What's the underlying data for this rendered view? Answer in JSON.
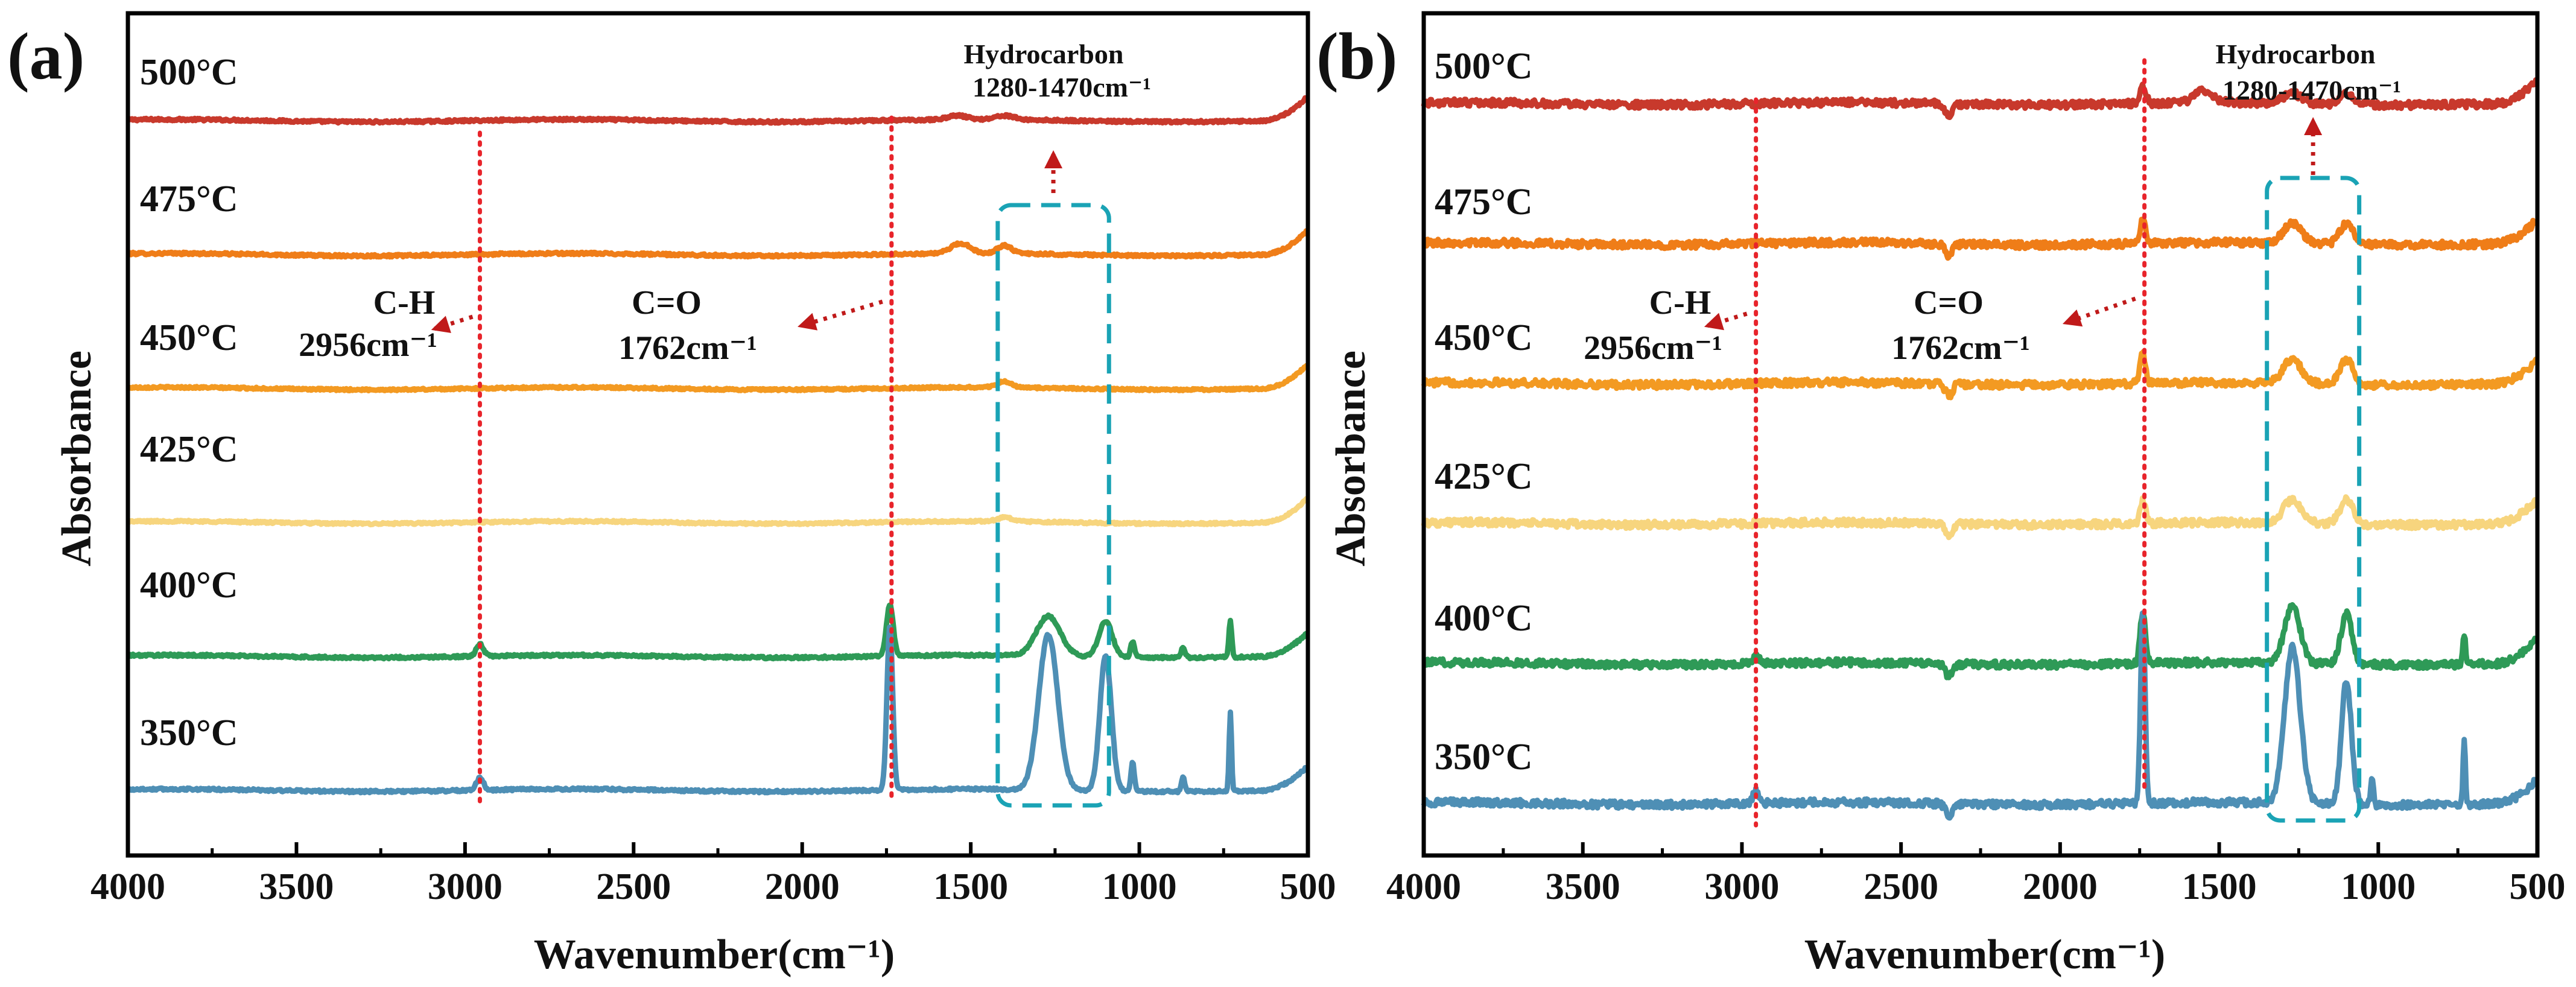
{
  "chart_data": [
    {
      "type": "line",
      "panel_label": "(a)",
      "xlabel": "Wavenumber(cm⁻¹)",
      "ylabel": "Absorbance",
      "xlim": [
        4000,
        500
      ],
      "x_reversed": true,
      "xticks": [
        4000,
        3500,
        3000,
        2500,
        2000,
        1500,
        1000,
        500
      ],
      "series": [
        {
          "name": "500°C",
          "label": "500°C",
          "color": "#c8392c",
          "offset": 5,
          "peaks": [
            [
              1540,
              0.02,
              40
            ],
            [
              1400,
              0.02,
              40
            ]
          ],
          "noise": 0.006
        },
        {
          "name": "475°C",
          "label": "475°C",
          "color": "#ef7d18",
          "offset": 4,
          "peaks": [
            [
              1530,
              0.05,
              40
            ],
            [
              1400,
              0.04,
              30
            ]
          ],
          "noise": 0.006
        },
        {
          "name": "450°C",
          "label": "450°C",
          "color": "#f39a22",
          "offset": 3,
          "peaks": [
            [
              1400,
              0.03,
              30
            ]
          ],
          "noise": 0.005
        },
        {
          "name": "425°C",
          "label": "425°C",
          "color": "#f7d57e",
          "offset": 2,
          "peaks": [
            [
              1400,
              0.02,
              30
            ]
          ],
          "noise": 0.005
        },
        {
          "name": "400°C",
          "label": "400°C",
          "color": "#2e9a57",
          "offset": 1,
          "peaks": [
            [
              2956,
              0.06,
              15
            ],
            [
              1740,
              0.26,
              14
            ],
            [
              1270,
              0.2,
              50
            ],
            [
              1100,
              0.18,
              28
            ],
            [
              1020,
              0.08,
              8
            ],
            [
              870,
              0.05,
              8
            ],
            [
              730,
              0.18,
              6
            ]
          ],
          "noise": 0.006
        },
        {
          "name": "350°C",
          "label": "350°C",
          "color": "#4e8fb5",
          "offset": 0,
          "peaks": [
            [
              2956,
              0.06,
              15
            ],
            [
              1740,
              0.82,
              12
            ],
            [
              1270,
              0.78,
              40
            ],
            [
              1100,
              0.68,
              24
            ],
            [
              1020,
              0.15,
              7
            ],
            [
              870,
              0.07,
              7
            ],
            [
              730,
              0.4,
              5
            ]
          ],
          "noise": 0.006
        }
      ],
      "annotations": {
        "ch_line": 2956,
        "co_line": 1735,
        "ch_label": "C-H",
        "ch_value": "2956cm⁻¹",
        "co_label": "C=O",
        "co_value": "1762cm⁻¹",
        "hc_label": "Hydrocarbon",
        "hc_value": "1280-1470cm⁻¹",
        "hc_box": [
          1420,
          1090
        ]
      }
    },
    {
      "type": "line",
      "panel_label": "(b)",
      "xlabel": "Wavenumber(cm⁻¹)",
      "ylabel": "Absorbance",
      "xlim": [
        4000,
        500
      ],
      "x_reversed": true,
      "xticks": [
        4000,
        3500,
        3000,
        2500,
        2000,
        1500,
        1000,
        500
      ],
      "series": [
        {
          "name": "500°C",
          "label": "500°C",
          "color": "#c8392c",
          "offset": 5,
          "peaks": [
            [
              2350,
              -0.06,
              15
            ],
            [
              1740,
              0.08,
              14
            ],
            [
              1550,
              0.06,
              40
            ],
            [
              1270,
              0.05,
              40
            ],
            [
              1100,
              0.05,
              30
            ]
          ],
          "noise": 0.018
        },
        {
          "name": "475°C",
          "label": "475°C",
          "color": "#ef7d18",
          "offset": 4,
          "peaks": [
            [
              2350,
              -0.06,
              15
            ],
            [
              1740,
              0.12,
              12
            ],
            [
              1270,
              0.1,
              40
            ],
            [
              1100,
              0.1,
              30
            ]
          ],
          "noise": 0.018
        },
        {
          "name": "450°C",
          "label": "450°C",
          "color": "#f39a22",
          "offset": 3,
          "peaks": [
            [
              2350,
              -0.06,
              15
            ],
            [
              1740,
              0.15,
              12
            ],
            [
              1270,
              0.12,
              40
            ],
            [
              1100,
              0.12,
              30
            ]
          ],
          "noise": 0.018
        },
        {
          "name": "425°C",
          "label": "425°C",
          "color": "#f7d57e",
          "offset": 2,
          "peaks": [
            [
              2350,
              -0.06,
              15
            ],
            [
              1740,
              0.12,
              12
            ],
            [
              1270,
              0.12,
              40
            ],
            [
              1100,
              0.12,
              30
            ]
          ],
          "noise": 0.018
        },
        {
          "name": "400°C",
          "label": "400°C",
          "color": "#2e9a57",
          "offset": 1,
          "peaks": [
            [
              2956,
              0.04,
              15
            ],
            [
              2350,
              -0.06,
              15
            ],
            [
              1740,
              0.26,
              12
            ],
            [
              1270,
              0.28,
              35
            ],
            [
              1100,
              0.25,
              25
            ],
            [
              730,
              0.15,
              6
            ]
          ],
          "noise": 0.018
        },
        {
          "name": "350°C",
          "label": "350°C",
          "color": "#4e8fb5",
          "offset": 0,
          "peaks": [
            [
              2956,
              0.06,
              15
            ],
            [
              2350,
              -0.06,
              15
            ],
            [
              1740,
              0.95,
              10
            ],
            [
              1270,
              0.78,
              35
            ],
            [
              1100,
              0.62,
              22
            ],
            [
              1020,
              0.15,
              6
            ],
            [
              730,
              0.32,
              5
            ]
          ],
          "noise": 0.018
        }
      ],
      "annotations": {
        "ch_line": 2956,
        "co_line": 1735,
        "ch_label": "C-H",
        "ch_value": "2956cm⁻¹",
        "co_label": "C=O",
        "co_value": "1762cm⁻¹",
        "hc_label": "Hydrocarbon",
        "hc_value": "1280-1470cm⁻¹",
        "hc_box": [
          1350,
          1060
        ]
      }
    }
  ]
}
